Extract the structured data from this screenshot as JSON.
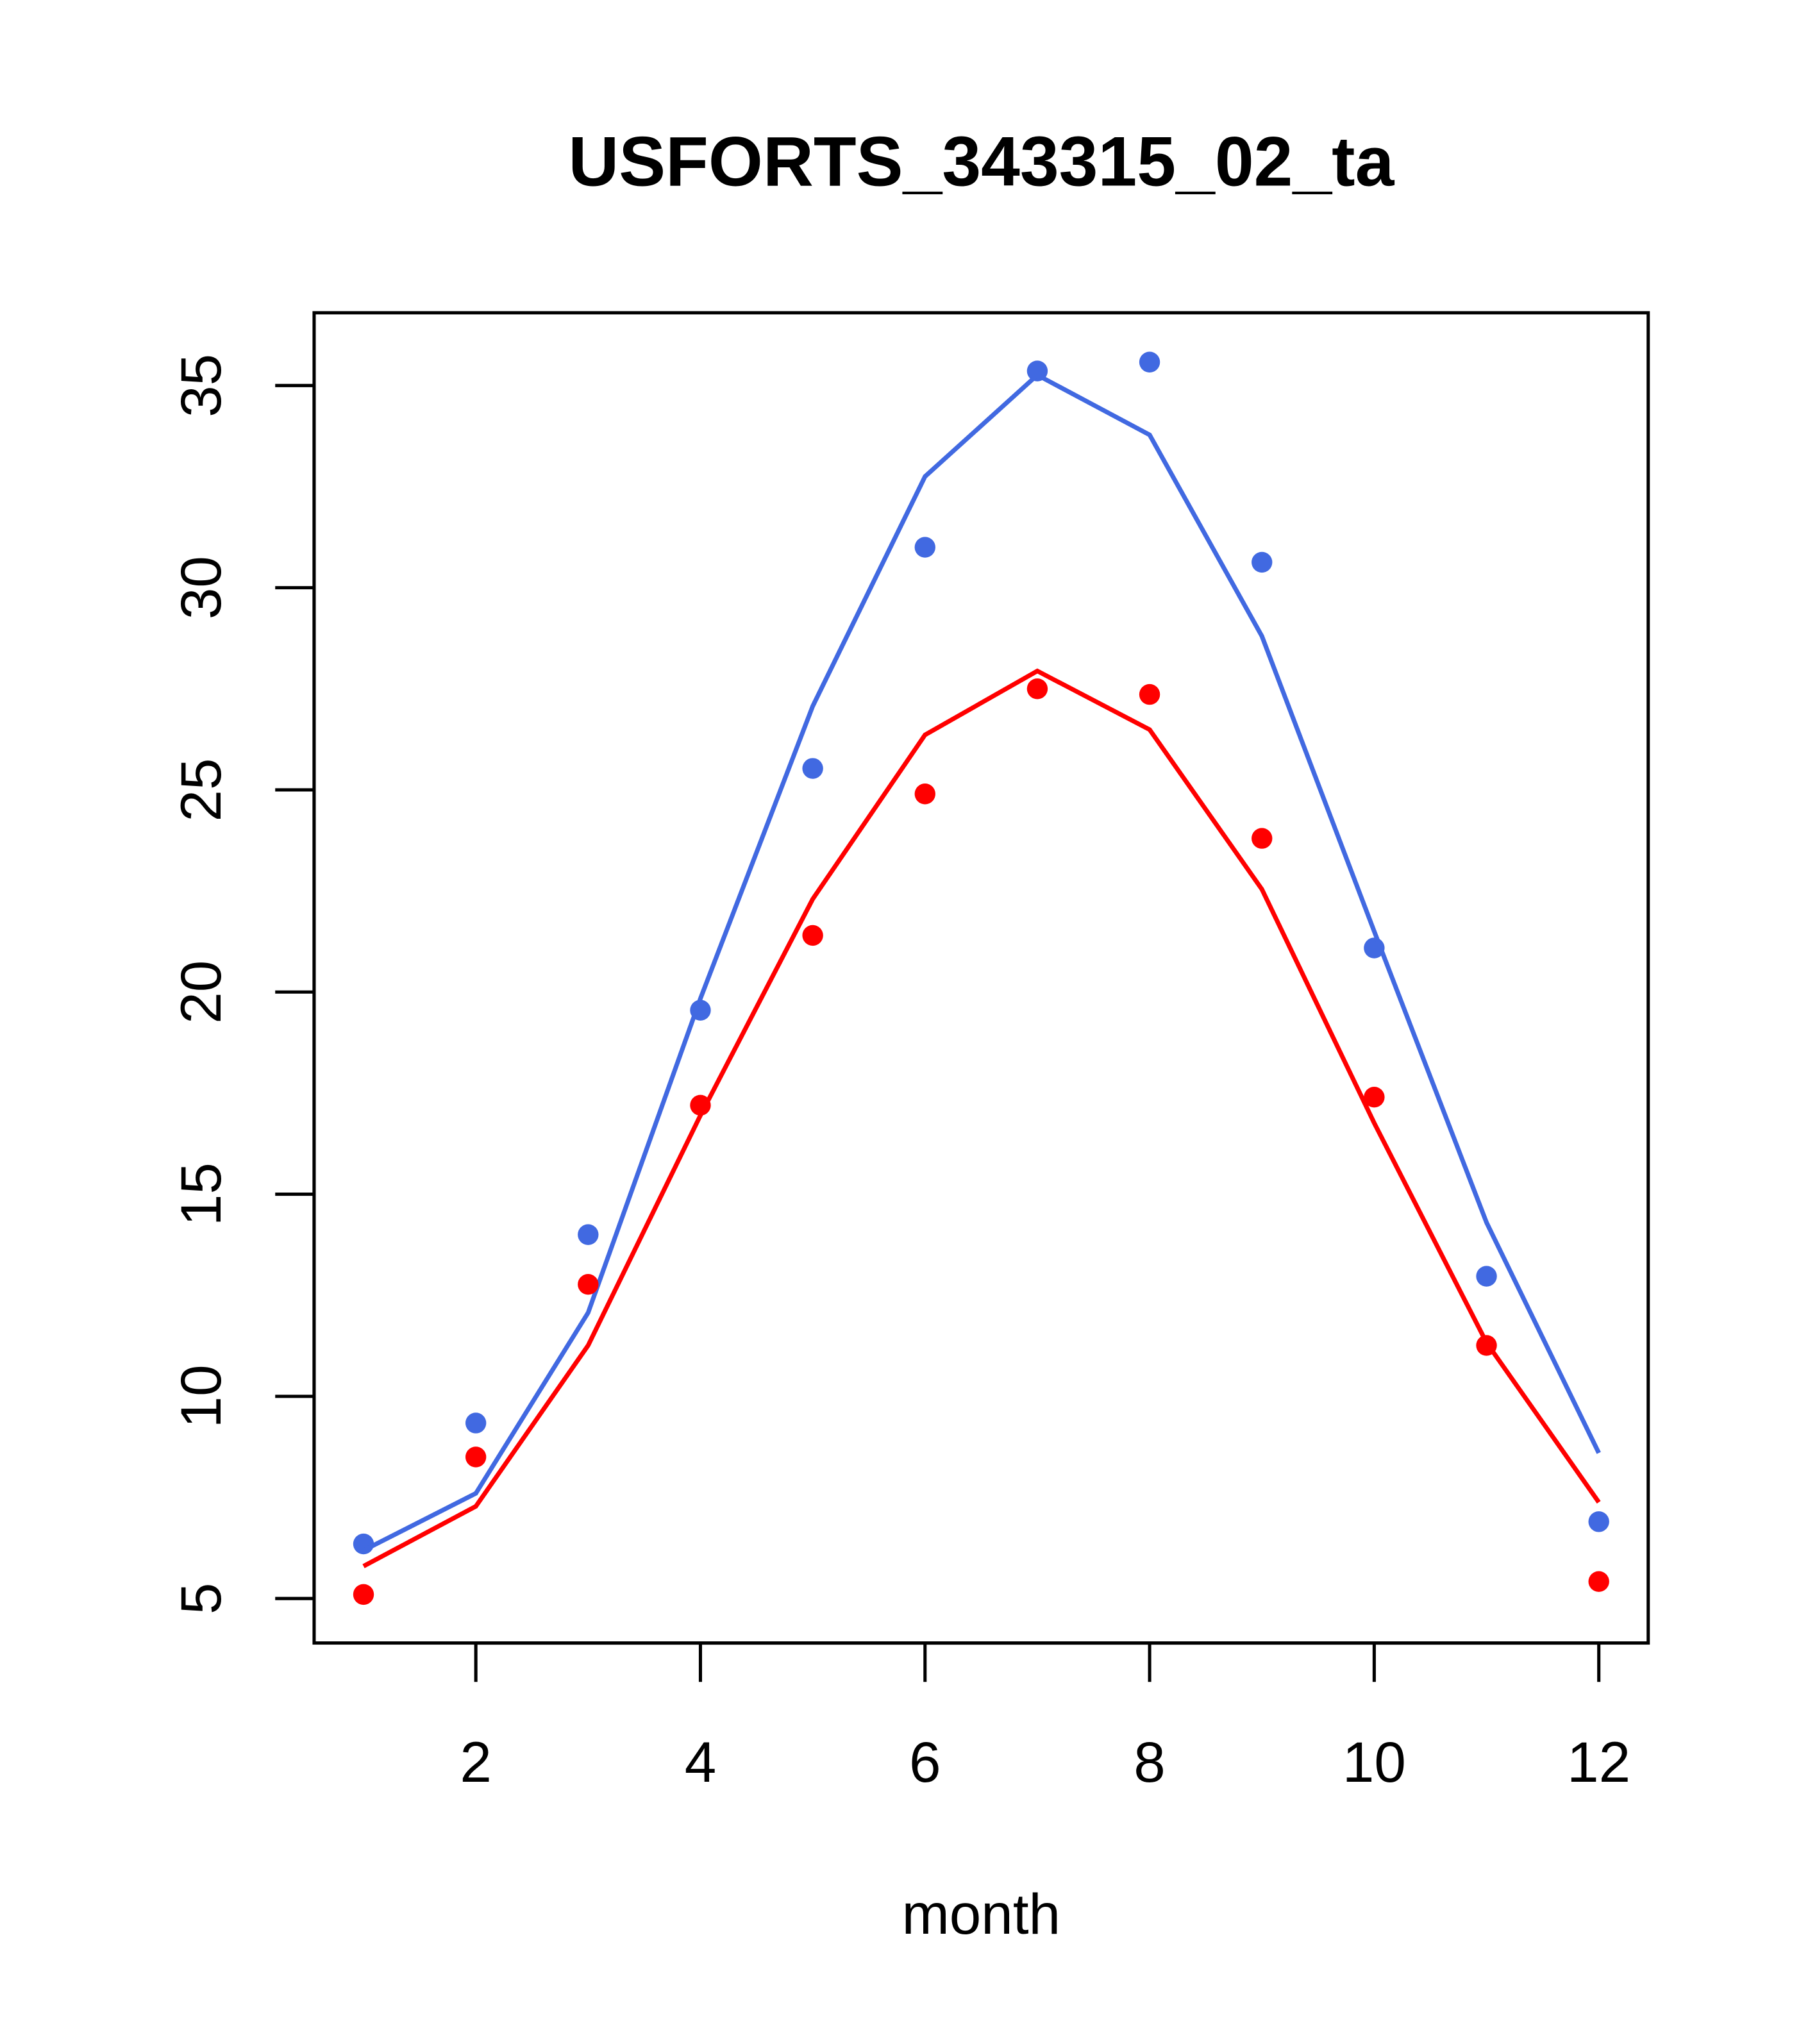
{
  "chart_data": {
    "type": "line",
    "title": "USFORTS_343315_02_ta",
    "xlabel": "month",
    "ylabel": "",
    "xlim": [
      0.56,
      12.44
    ],
    "ylim": [
      3.9,
      36.8
    ],
    "xticks": [
      2,
      4,
      6,
      8,
      10,
      12
    ],
    "yticks": [
      5,
      10,
      15,
      20,
      25,
      30,
      35
    ],
    "grid": false,
    "x": [
      1,
      2,
      3,
      4,
      5,
      6,
      7,
      8,
      9,
      10,
      11,
      12
    ],
    "series": [
      {
        "name": "blue points",
        "kind": "points",
        "color": "#4169E1",
        "values": [
          6.35,
          9.34,
          14.0,
          19.55,
          25.53,
          31.0,
          35.36,
          35.58,
          30.63,
          21.09,
          12.97,
          6.9
        ]
      },
      {
        "name": "blue line",
        "kind": "line",
        "color": "#4169E1",
        "values": [
          6.19,
          7.6,
          12.07,
          19.84,
          27.07,
          32.75,
          35.26,
          33.78,
          28.8,
          21.5,
          14.3,
          8.6
        ]
      },
      {
        "name": "red points",
        "kind": "points",
        "color": "#FF0000",
        "values": [
          5.1,
          8.5,
          12.77,
          17.2,
          21.4,
          24.9,
          27.5,
          27.36,
          23.8,
          17.4,
          11.26,
          5.42
        ]
      },
      {
        "name": "red line",
        "kind": "line",
        "color": "#FF0000",
        "values": [
          5.8,
          7.28,
          11.26,
          16.95,
          22.3,
          26.36,
          27.94,
          26.49,
          22.54,
          16.76,
          11.33,
          7.38
        ]
      }
    ]
  }
}
